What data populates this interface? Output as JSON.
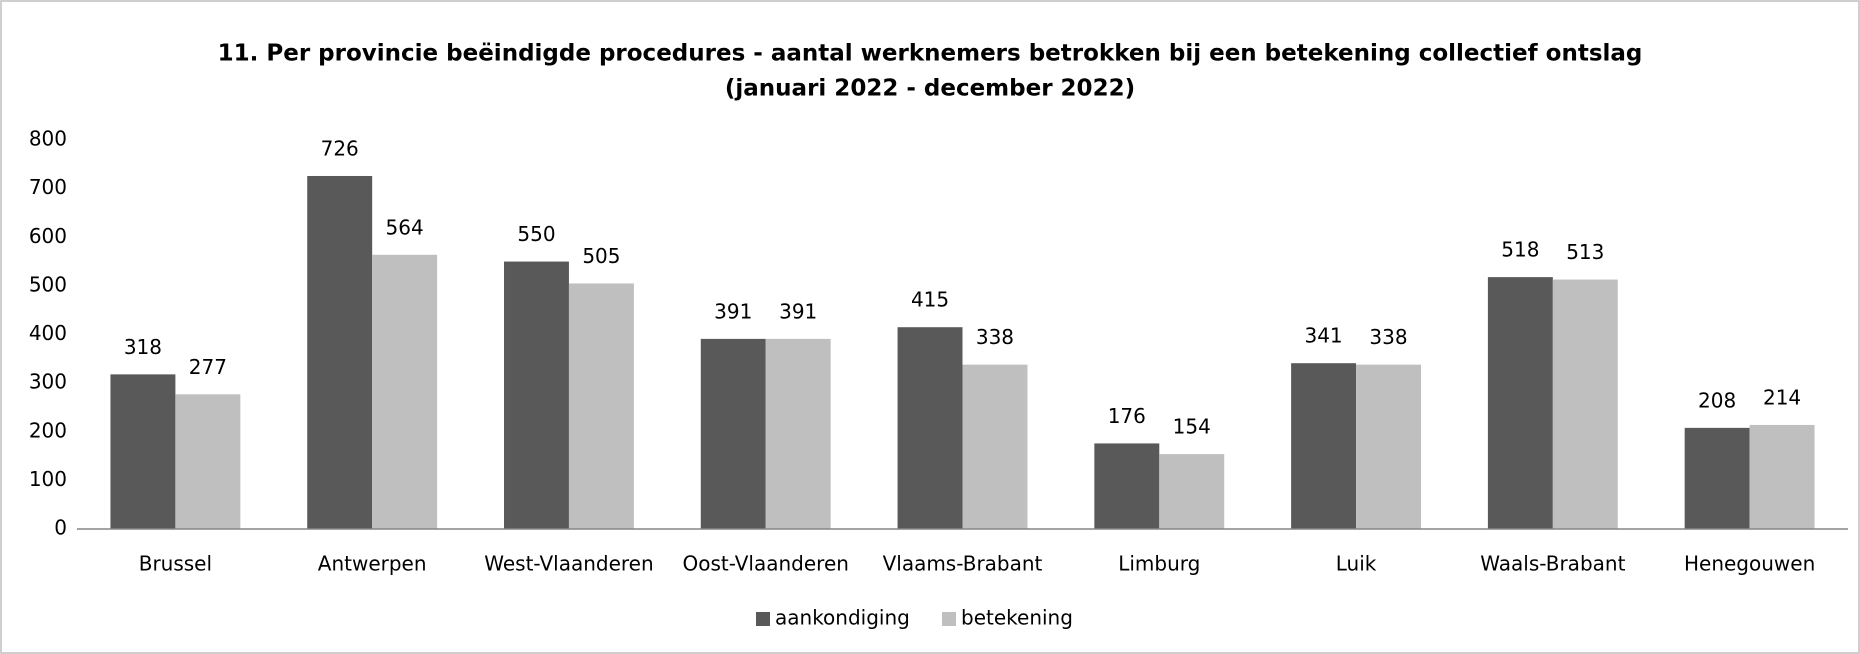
{
  "chart_data": {
    "type": "bar",
    "title": "11. Per provincie beëindigde procedures - aantal werknemers betrokken bij een betekening collectief ontslag",
    "subtitle": "(januari 2022 - december 2022)",
    "categories": [
      "Brussel",
      "Antwerpen",
      "West-Vlaanderen",
      "Oost-Vlaanderen",
      "Vlaams-Brabant",
      "Limburg",
      "Luik",
      "Waals-Brabant",
      "Henegouwen"
    ],
    "series": [
      {
        "name": "aankondiging",
        "color": "#595959",
        "values": [
          318,
          726,
          550,
          391,
          415,
          176,
          341,
          518,
          208
        ]
      },
      {
        "name": "betekening",
        "color": "#bfbfbf",
        "values": [
          277,
          564,
          505,
          391,
          338,
          154,
          338,
          513,
          214
        ]
      }
    ],
    "ylim": [
      0,
      800
    ],
    "yticks": [
      0,
      100,
      200,
      300,
      400,
      500,
      600,
      700,
      800
    ],
    "grid": false,
    "legend": "bottom"
  }
}
